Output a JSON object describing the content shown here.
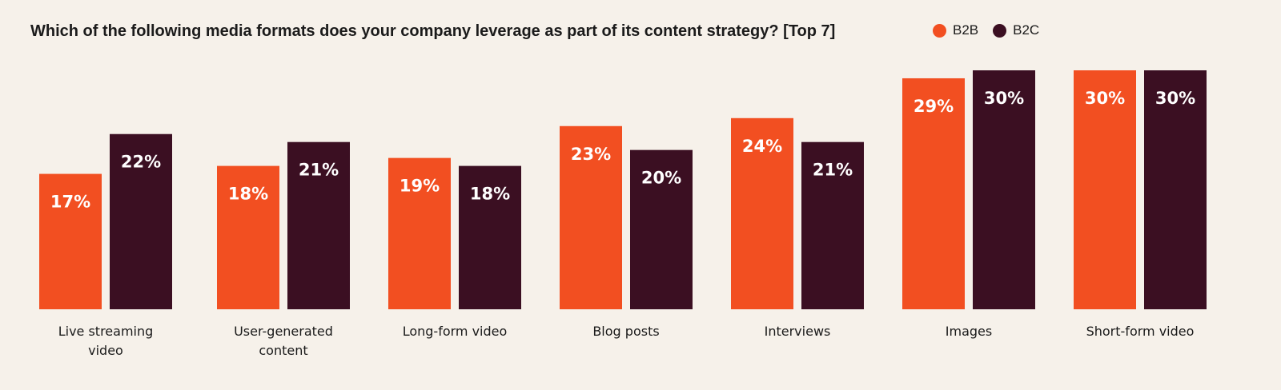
{
  "chart_data": {
    "type": "bar",
    "title": "Which of the following media formats does your company leverage as part of its content strategy? [Top 7]",
    "categories": [
      [
        "Live streaming",
        "video"
      ],
      [
        "User-generated",
        "content"
      ],
      [
        "Long-form video"
      ],
      [
        "Blog posts"
      ],
      [
        "Interviews"
      ],
      [
        "Images"
      ],
      [
        "Short-form video"
      ]
    ],
    "series": [
      {
        "name": "B2B",
        "color": "#f24f21",
        "values": [
          17,
          18,
          19,
          23,
          24,
          29,
          30
        ],
        "labels": [
          "17%",
          "18%",
          "19%",
          "23%",
          "24%",
          "29%",
          "30%"
        ]
      },
      {
        "name": "B2C",
        "color": "#3b0f22",
        "values": [
          22,
          21,
          18,
          20,
          21,
          30,
          30
        ],
        "labels": [
          "22%",
          "21%",
          "18%",
          "20%",
          "21%",
          "30%",
          "30%"
        ]
      }
    ],
    "ylim": [
      0,
      30
    ],
    "grid": false,
    "legend_position": "top-right",
    "xlabel": "",
    "ylabel": ""
  }
}
